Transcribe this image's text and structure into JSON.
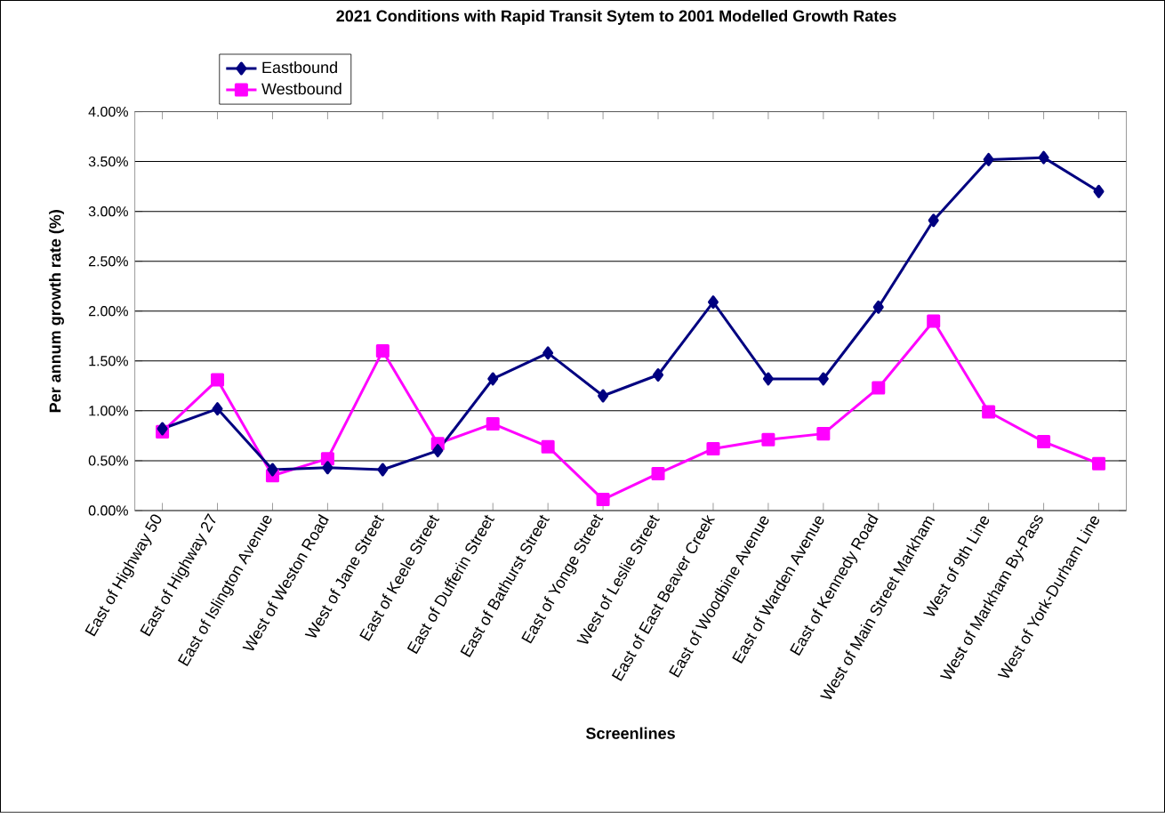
{
  "chart_data": {
    "type": "line",
    "title": "2021 Conditions with Rapid Transit Sytem to 2001 Modelled Growth Rates",
    "xlabel": "Screenlines",
    "ylabel": "Per annum growth rate (%)",
    "categories": [
      "East of Highway 50",
      "East of Highway 27",
      "East of Islington Avenue",
      "West of Weston Road",
      "West of Jane Street",
      "East of Keele Street",
      "East of Dufferin Street",
      "East of Bathurst Street",
      "East of Yonge Street",
      "West of Leslie Street",
      "East of East Beaver Creek",
      "East of Woodbine Avenue",
      "East of Warden Avenue",
      "East of Kennedy Road",
      "West of Main Street Markham",
      "West of 9th Line",
      "West of Markham By-Pass",
      "West of York-Durham Line"
    ],
    "series": [
      {
        "name": "Eastbound",
        "color": "#000080",
        "marker": "diamond",
        "values": [
          0.82,
          1.02,
          0.41,
          0.43,
          0.41,
          0.6,
          1.32,
          1.58,
          1.15,
          1.36,
          2.09,
          1.32,
          1.32,
          2.04,
          2.91,
          3.52,
          3.54,
          3.2
        ]
      },
      {
        "name": "Westbound",
        "color": "#ff00ff",
        "marker": "square",
        "values": [
          0.79,
          1.31,
          0.35,
          0.52,
          1.6,
          0.67,
          0.87,
          0.64,
          0.11,
          0.37,
          0.62,
          0.71,
          0.77,
          1.23,
          1.9,
          0.99,
          0.69,
          0.47
        ]
      }
    ],
    "ylim": [
      0,
      4
    ],
    "yticks": [
      {
        "value": 0,
        "label": "0.00%"
      },
      {
        "value": 0.5,
        "label": "0.50%"
      },
      {
        "value": 1,
        "label": "1.00%"
      },
      {
        "value": 1.5,
        "label": "1.50%"
      },
      {
        "value": 2,
        "label": "2.00%"
      },
      {
        "value": 2.5,
        "label": "2.50%"
      },
      {
        "value": 3,
        "label": "3.00%"
      },
      {
        "value": 3.5,
        "label": "3.50%"
      },
      {
        "value": 4,
        "label": "4.00%"
      }
    ],
    "grid": "y",
    "legend": "top left",
    "line_style": "solid"
  }
}
